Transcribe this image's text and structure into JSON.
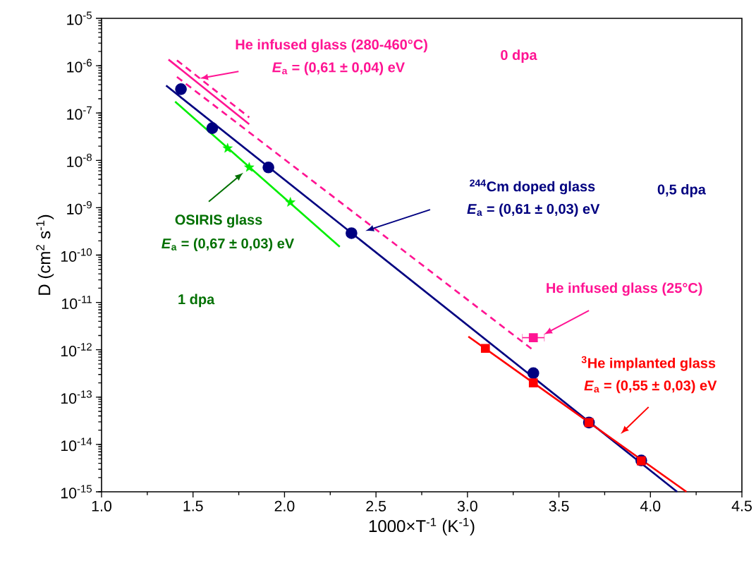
{
  "chart_data": {
    "type": "scatter",
    "xlabel": "1000×T$^{-1}$ (K$^{-1}$)",
    "ylabel": "D (cm$^{2}$ s$^{-1}$)",
    "log": "y",
    "xlim": [
      1.0,
      4.5
    ],
    "ylim": [
      1e-15,
      1e-05
    ],
    "xticks": [
      {
        "value": 1.0,
        "label": "1.0"
      },
      {
        "value": 1.5,
        "label": "1.5"
      },
      {
        "value": 2.0,
        "label": "2.0"
      },
      {
        "value": 2.5,
        "label": "2.5"
      },
      {
        "value": 3.0,
        "label": "3.0"
      },
      {
        "value": 3.5,
        "label": "3.5"
      },
      {
        "value": 4.0,
        "label": "4.0"
      },
      {
        "value": 4.5,
        "label": "4.5"
      }
    ],
    "yticks": [
      {
        "value": 1e-15,
        "label": "10$^{-15}$"
      },
      {
        "value": 1e-14,
        "label": "10$^{-14}$"
      },
      {
        "value": 1e-13,
        "label": "10$^{-13}$"
      },
      {
        "value": 1e-12,
        "label": "10$^{-12}$"
      },
      {
        "value": 1e-11,
        "label": "10$^{-11}$"
      },
      {
        "value": 1e-10,
        "label": "10$^{-10}$"
      },
      {
        "value": 1e-09,
        "label": "10$^{-9}$"
      },
      {
        "value": 1e-08,
        "label": "10$^{-8}$"
      },
      {
        "value": 1e-07,
        "label": "10$^{-7}$"
      },
      {
        "value": 1e-06,
        "label": "10$^{-6}$"
      },
      {
        "value": 1e-05,
        "label": "10$^{-5}$"
      }
    ],
    "series": [
      {
        "type": "line",
        "color": "#ff1493",
        "line_style": "solid",
        "x": [
          1.366,
          1.807
        ],
        "values": [
          1.35e-06,
          5.8e-08
        ]
      },
      {
        "type": "line",
        "color": "#ff1493",
        "line_style": "dashed",
        "x": [
          1.412,
          1.807
        ],
        "values": [
          1.3e-06,
          8.1e-08
        ]
      },
      {
        "type": "line",
        "color": "#ff1493",
        "line_style": "dashed",
        "x": [
          1.412,
          3.36
        ],
        "values": [
          5.8e-07,
          9.8e-13
        ]
      },
      {
        "type": "line",
        "color": "#000080",
        "line_style": "solid",
        "x": [
          1.353,
          4.146
        ],
        "values": [
          3.8e-07,
          1e-15
        ]
      },
      {
        "type": "line",
        "color": "#00ee00",
        "line_style": "solid",
        "x": [
          1.402,
          2.302
        ],
        "values": [
          1.74e-07,
          1.5e-10
        ]
      },
      {
        "type": "line",
        "color": "#ff0000",
        "line_style": "solid",
        "x": [
          3.005,
          4.197
        ],
        "values": [
          1.9e-12,
          1e-15
        ]
      },
      {
        "type": "scatter",
        "color": "#000080",
        "marker": "circle",
        "x": [
          1.434,
          1.605,
          1.912,
          2.366,
          3.36,
          3.664,
          3.95
        ],
        "values": [
          3.2e-07,
          4.8e-08,
          7.1e-09,
          2.9e-10,
          3.2e-13,
          2.9e-14,
          4.6e-15
        ]
      },
      {
        "type": "scatter",
        "color": "#00ee00",
        "marker": "star",
        "x": [
          1.689,
          1.807,
          2.032
        ],
        "values": [
          1.8e-08,
          7.1e-09,
          1.3e-09
        ]
      },
      {
        "type": "scatter",
        "color": "#ff0000",
        "marker": "square",
        "x": [
          3.098,
          3.36,
          3.664,
          3.95
        ],
        "values": [
          1.07e-12,
          2e-13,
          2.9e-14,
          4.5e-15
        ]
      },
      {
        "type": "scatter",
        "color": "#ff1493",
        "marker": "square",
        "x": [
          3.36
        ],
        "values": [
          1.8e-12
        ],
        "xerrors": [
          0.06
        ]
      }
    ],
    "annotations": [
      "He infused glass (280-460°C)",
      "*E*$_{a}$ = (0,61 ±  0,04) eV",
      "0 dpa",
      "$^{244}$Cm doped glass",
      "*E*$_{a}$ = (0,61 ±  0,03) eV",
      "0,5 dpa",
      {
        "text": "OSIRIS glass",
        "x": 1.775,
        "y": 5.5e-09
      },
      "*E*$_{a}$ = (0,67 ±  0,03) eV",
      "1 dpa",
      {
        "text": "He infused glass (25°C)",
        "x": 3.417,
        "y": 2.1e-12
      },
      "$^{3}$He implanted glass",
      "*E*$_{a}$ = (0,55 ±  0,03) eV"
    ]
  }
}
